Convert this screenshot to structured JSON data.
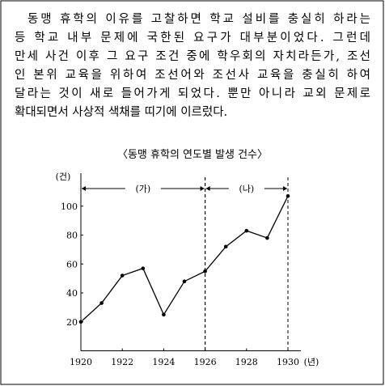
{
  "paragraph": {
    "lines": [
      "동맹 휴학의 이유를 고찰하면 학교 설비를 충실히 하라는",
      "등 학교 내부 문제에 국한된 요구가 대부분이었다. 그런데",
      "만세 사건 이후 그 요구 조건 중에 학우회의 자치라든가, 조선",
      "인 본위 교육을 위하여 조선어와 조선사 교육을 충실히 하여",
      "달라는 것이 새로 들어가게 되었다. 뿐만 아니라 교외 문제로",
      "확대되면서 사상적 색채를 띠기에 이르렀다."
    ]
  },
  "chart_data": {
    "type": "line",
    "title": "〈동맹 휴학의 연도별 발생 건수〉",
    "y_unit": "(건)",
    "x_unit": "(년)",
    "x": [
      1920,
      1921,
      1922,
      1923,
      1924,
      1925,
      1926,
      1927,
      1928,
      1929,
      1930
    ],
    "values": [
      20,
      33,
      52,
      57,
      25,
      48,
      55,
      72,
      83,
      78,
      107
    ],
    "color": "#000000",
    "xlim": [
      1920,
      1930
    ],
    "ylim": [
      0,
      120
    ],
    "xticks": [
      1920,
      1922,
      1924,
      1926,
      1928,
      1930
    ],
    "yticks": [
      20,
      40,
      60,
      80,
      100
    ],
    "periods": [
      {
        "label": "(가)",
        "start": 1920,
        "end": 1926
      },
      {
        "label": "(나)",
        "start": 1926,
        "end": 1930
      }
    ]
  }
}
